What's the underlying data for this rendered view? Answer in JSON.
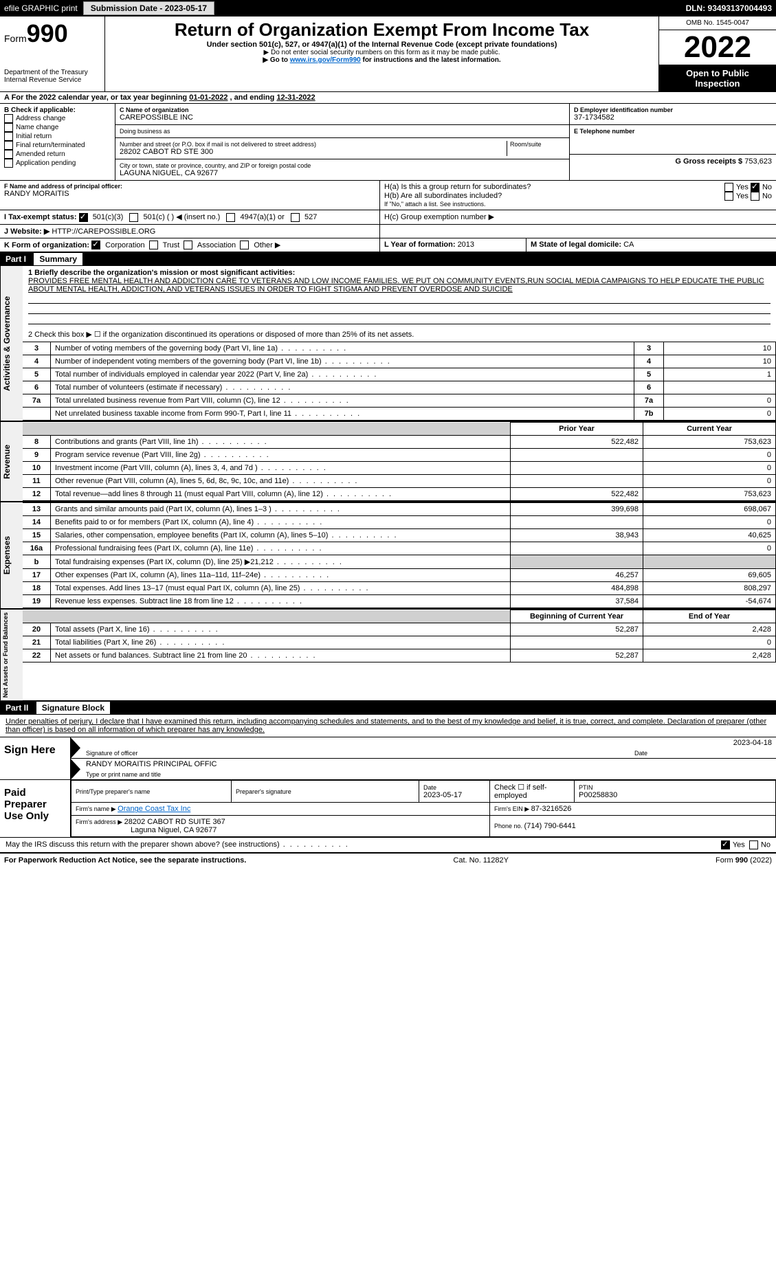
{
  "topbar": {
    "efile": "efile GRAPHIC print",
    "submission_label": "Submission Date - 2023-05-17",
    "dln": "DLN: 93493137004493"
  },
  "header": {
    "form_label": "Form",
    "form_number": "990",
    "dept": "Department of the Treasury",
    "irs": "Internal Revenue Service",
    "title": "Return of Organization Exempt From Income Tax",
    "subtitle": "Under section 501(c), 527, or 4947(a)(1) of the Internal Revenue Code (except private foundations)",
    "warn": "▶ Do not enter social security numbers on this form as it may be made public.",
    "goto_prefix": "▶ Go to ",
    "goto_link": "www.irs.gov/Form990",
    "goto_suffix": " for instructions and the latest information.",
    "omb": "OMB No. 1545-0047",
    "year": "2022",
    "inspect": "Open to Public Inspection"
  },
  "section_a": {
    "text_prefix": "A For the 2022 calendar year, or tax year beginning ",
    "begin": "01-01-2022",
    "mid": " , and ending ",
    "end": "12-31-2022"
  },
  "col_b": {
    "title": "B Check if applicable:",
    "items": [
      "Address change",
      "Name change",
      "Initial return",
      "Final return/terminated",
      "Amended return",
      "Application pending"
    ]
  },
  "col_c": {
    "name_label": "C Name of organization",
    "name": "CAREPOSSIBLE INC",
    "dba_label": "Doing business as",
    "street_label": "Number and street (or P.O. box if mail is not delivered to street address)",
    "room_label": "Room/suite",
    "street": "28202 CABOT RD STE 300",
    "city_label": "City or town, state or province, country, and ZIP or foreign postal code",
    "city": "LAGUNA NIGUEL, CA  92677"
  },
  "col_de": {
    "d_label": "D Employer identification number",
    "ein": "37-1734582",
    "e_label": "E Telephone number",
    "g_label": "G Gross receipts $ ",
    "g_value": "753,623"
  },
  "section_f": {
    "label": "F Name and address of principal officer:",
    "name": "RANDY MORAITIS"
  },
  "section_h": {
    "ha": "H(a)  Is this a group return for subordinates?",
    "hb": "H(b)  Are all subordinates included?",
    "hb_note": "If \"No,\" attach a list. See instructions.",
    "hc": "H(c)  Group exemption number ▶",
    "yes": "Yes",
    "no": "No"
  },
  "section_i": {
    "label": "I  Tax-exempt status:",
    "opt1": "501(c)(3)",
    "opt2": "501(c) (   ) ◀ (insert no.)",
    "opt3": "4947(a)(1) or",
    "opt4": "527"
  },
  "section_j": {
    "label": "J  Website: ▶",
    "value": "HTTP://CAREPOSSIBLE.ORG"
  },
  "section_k": {
    "label": "K Form of organization:",
    "opts": [
      "Corporation",
      "Trust",
      "Association",
      "Other ▶"
    ]
  },
  "section_l": {
    "label": "L Year of formation: ",
    "value": "2013"
  },
  "section_m": {
    "label": "M State of legal domicile: ",
    "value": "CA"
  },
  "part1": {
    "header": "Part I",
    "title": "Summary",
    "q1_label": "1  Briefly describe the organization's mission or most significant activities:",
    "mission": "PROVIDES FREE MENTAL HEALTH AND ADDICTION CARE TO VETERANS AND LOW INCOME FAMILIES. WE PUT ON COMMUNITY EVENTS,RUN SOCIAL MEDIA CAMPAIGNS TO HELP EDUCATE THE PUBLIC ABOUT MENTAL HEALTH, ADDICTION, AND VETERANS ISSUES IN ORDER TO FIGHT STIGMA AND PREVENT OVERDOSE AND SUICIDE",
    "q2": "2   Check this box ▶ ☐  if the organization discontinued its operations or disposed of more than 25% of its net assets.",
    "vtab_ag": "Activities & Governance",
    "vtab_rev": "Revenue",
    "vtab_exp": "Expenses",
    "vtab_net": "Net Assets or Fund Balances",
    "col_prior": "Prior Year",
    "col_current": "Current Year",
    "col_begin": "Beginning of Current Year",
    "col_end": "End of Year",
    "lines_ag": [
      {
        "n": "3",
        "d": "Number of voting members of the governing body (Part VI, line 1a)",
        "box": "3",
        "v": "10"
      },
      {
        "n": "4",
        "d": "Number of independent voting members of the governing body (Part VI, line 1b)",
        "box": "4",
        "v": "10"
      },
      {
        "n": "5",
        "d": "Total number of individuals employed in calendar year 2022 (Part V, line 2a)",
        "box": "5",
        "v": "1"
      },
      {
        "n": "6",
        "d": "Total number of volunteers (estimate if necessary)",
        "box": "6",
        "v": ""
      },
      {
        "n": "7a",
        "d": "Total unrelated business revenue from Part VIII, column (C), line 12",
        "box": "7a",
        "v": "0"
      },
      {
        "n": "",
        "d": "Net unrelated business taxable income from Form 990-T, Part I, line 11",
        "box": "7b",
        "v": "0"
      }
    ],
    "lines_rev": [
      {
        "n": "8",
        "d": "Contributions and grants (Part VIII, line 1h)",
        "p": "522,482",
        "c": "753,623"
      },
      {
        "n": "9",
        "d": "Program service revenue (Part VIII, line 2g)",
        "p": "",
        "c": "0"
      },
      {
        "n": "10",
        "d": "Investment income (Part VIII, column (A), lines 3, 4, and 7d )",
        "p": "",
        "c": "0"
      },
      {
        "n": "11",
        "d": "Other revenue (Part VIII, column (A), lines 5, 6d, 8c, 9c, 10c, and 11e)",
        "p": "",
        "c": "0"
      },
      {
        "n": "12",
        "d": "Total revenue—add lines 8 through 11 (must equal Part VIII, column (A), line 12)",
        "p": "522,482",
        "c": "753,623"
      }
    ],
    "lines_exp": [
      {
        "n": "13",
        "d": "Grants and similar amounts paid (Part IX, column (A), lines 1–3 )",
        "p": "399,698",
        "c": "698,067"
      },
      {
        "n": "14",
        "d": "Benefits paid to or for members (Part IX, column (A), line 4)",
        "p": "",
        "c": "0"
      },
      {
        "n": "15",
        "d": "Salaries, other compensation, employee benefits (Part IX, column (A), lines 5–10)",
        "p": "38,943",
        "c": "40,625"
      },
      {
        "n": "16a",
        "d": "Professional fundraising fees (Part IX, column (A), line 11e)",
        "p": "",
        "c": "0"
      },
      {
        "n": "b",
        "d": "Total fundraising expenses (Part IX, column (D), line 25) ▶21,212",
        "p": "shade",
        "c": "shade"
      },
      {
        "n": "17",
        "d": "Other expenses (Part IX, column (A), lines 11a–11d, 11f–24e)",
        "p": "46,257",
        "c": "69,605"
      },
      {
        "n": "18",
        "d": "Total expenses. Add lines 13–17 (must equal Part IX, column (A), line 25)",
        "p": "484,898",
        "c": "808,297"
      },
      {
        "n": "19",
        "d": "Revenue less expenses. Subtract line 18 from line 12",
        "p": "37,584",
        "c": "-54,674"
      }
    ],
    "lines_net": [
      {
        "n": "20",
        "d": "Total assets (Part X, line 16)",
        "p": "52,287",
        "c": "2,428"
      },
      {
        "n": "21",
        "d": "Total liabilities (Part X, line 26)",
        "p": "",
        "c": "0"
      },
      {
        "n": "22",
        "d": "Net assets or fund balances. Subtract line 21 from line 20",
        "p": "52,287",
        "c": "2,428"
      }
    ]
  },
  "part2": {
    "header": "Part II",
    "title": "Signature Block",
    "declaration": "Under penalties of perjury, I declare that I have examined this return, including accompanying schedules and statements, and to the best of my knowledge and belief, it is true, correct, and complete. Declaration of preparer (other than officer) is based on all information of which preparer has any knowledge.",
    "sign_here": "Sign Here",
    "sig_officer": "Signature of officer",
    "sig_date": "Date",
    "sig_date_val": "2023-04-18",
    "sig_name": "RANDY MORAITIS  PRINCIPAL OFFIC",
    "sig_name_label": "Type or print name and title",
    "paid": "Paid Preparer Use Only",
    "prep_name_label": "Print/Type preparer's name",
    "prep_sig_label": "Preparer's signature",
    "prep_date_label": "Date",
    "prep_date": "2023-05-17",
    "prep_check": "Check ☐ if self-employed",
    "ptin_label": "PTIN",
    "ptin": "P00258830",
    "firm_name_label": "Firm's name   ▶ ",
    "firm_name": "Orange Coast Tax Inc",
    "firm_ein_label": "Firm's EIN ▶ ",
    "firm_ein": "87-3216526",
    "firm_addr_label": "Firm's address ▶ ",
    "firm_addr1": "28202 CABOT RD SUITE 367",
    "firm_addr2": "Laguna Niguel, CA  92677",
    "phone_label": "Phone no. ",
    "phone": "(714) 790-6441",
    "discuss": "May the IRS discuss this return with the preparer shown above? (see instructions)",
    "yes": "Yes",
    "no": "No"
  },
  "footer": {
    "left": "For Paperwork Reduction Act Notice, see the separate instructions.",
    "mid": "Cat. No. 11282Y",
    "right": "Form 990 (2022)"
  },
  "colors": {
    "black": "#000000",
    "white": "#ffffff",
    "link": "#0066cc",
    "shade": "#d0d0d0",
    "btn_bg": "#e0e0e0"
  }
}
